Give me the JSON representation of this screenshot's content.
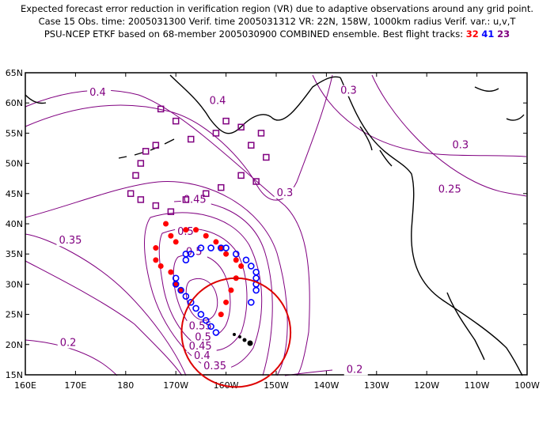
{
  "title": {
    "line1": "Expected forecast error reduction in verification region (VR) due to adaptive observations around any grid point.",
    "line2": "Case 15  Obs. time: 2005031300  Verif. time 2005031312  VR: 22N, 158W, 1000km radius  Verif. var.: u,v,T",
    "line3_prefix": "PSU-NCEP ETKF based on 68-member 2005030900 COMBINED ensemble.  Best flight tracks:",
    "tracks": [
      {
        "label": "32",
        "color": "#ff0000"
      },
      {
        "label": "41",
        "color": "#0000ff"
      },
      {
        "label": "23",
        "color": "#800080"
      }
    ]
  },
  "map": {
    "lon_ticks": [
      "160E",
      "170E",
      "180",
      "170W",
      "160W",
      "150W",
      "140W",
      "130W",
      "120W",
      "110W",
      "100W"
    ],
    "lat_ticks": [
      "15N",
      "20N",
      "25N",
      "30N",
      "35N",
      "40N",
      "45N",
      "50N",
      "55N",
      "60N",
      "65N"
    ],
    "lon_range": [
      160,
      260
    ],
    "lat_range": [
      15,
      65
    ]
  },
  "contour_labels": [
    {
      "text": "0.4",
      "lon": 172.8,
      "lat": 61.2
    },
    {
      "text": "0.4",
      "lon": 196.7,
      "lat": 59.8
    },
    {
      "text": "0.3",
      "lon": 222.8,
      "lat": 61.5
    },
    {
      "text": "0.3",
      "lon": 245.1,
      "lat": 52.5
    },
    {
      "text": "0.25",
      "lon": 242.3,
      "lat": 45.2
    },
    {
      "text": "0.3",
      "lon": 210.1,
      "lat": 44.6
    },
    {
      "text": "0.45",
      "lon": 191.5,
      "lat": 43.5
    },
    {
      "text": "0.5",
      "lon": 190.3,
      "lat": 38.2
    },
    {
      "text": "0.35",
      "lon": 166.7,
      "lat": 36.7
    },
    {
      "text": "0.5",
      "lon": 192.0,
      "lat": 34.8
    },
    {
      "text": "0.55",
      "lon": 192.6,
      "lat": 22.5
    },
    {
      "text": "0.5",
      "lon": 193.8,
      "lat": 20.7
    },
    {
      "text": "0.45",
      "lon": 192.6,
      "lat": 19.2
    },
    {
      "text": "0.4",
      "lon": 193.6,
      "lat": 17.6
    },
    {
      "text": "0.35",
      "lon": 195.5,
      "lat": 15.9
    },
    {
      "text": "0.2",
      "lon": 166.9,
      "lat": 19.8
    },
    {
      "text": "0.2",
      "lon": 224.0,
      "lat": 15.3
    }
  ],
  "verification_region": {
    "lon": 202,
    "lat": 22,
    "radius_km": 1000,
    "color": "#dd0000"
  },
  "contour_color": "#800080",
  "coast_color": "#000000"
}
